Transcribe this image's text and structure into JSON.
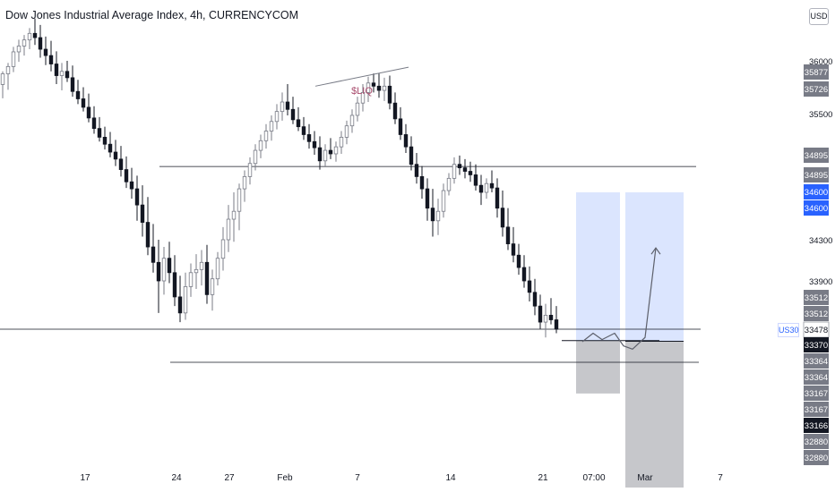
{
  "title": "Dow Jones Industrial Average Index, 4h, CURRENCYCOM",
  "currency_button": "USD",
  "symbol_tag": "US30",
  "annotation": "$LIQ",
  "colors": {
    "candle": "#131722",
    "hline": "#131722",
    "profit_zone": "#dbe5fe",
    "stop_zone": "#c6c7cb",
    "dark_badge": "#131722",
    "gray_badge": "#787b86",
    "blue_badge": "#2962ff",
    "white_badge": "#ffffff",
    "annotation": "#a94d6e"
  },
  "chart_data": {
    "type": "candlestick",
    "price_scale": {
      "ticks": [
        36000,
        35500,
        34300,
        33900
      ],
      "labels": [
        {
          "text": "35877",
          "style": "gray"
        },
        {
          "text": "35726",
          "style": "gray"
        },
        {
          "text": "34895",
          "style": "gray"
        },
        {
          "text": "34895",
          "style": "gray"
        },
        {
          "text": "34600",
          "style": "blue"
        },
        {
          "text": "34600",
          "style": "blue"
        },
        {
          "text": "33512",
          "style": "gray"
        },
        {
          "text": "33512",
          "style": "gray"
        },
        {
          "text": "33478",
          "style": "white"
        },
        {
          "text": "33370",
          "style": "dark"
        },
        {
          "text": "33364",
          "style": "gray"
        },
        {
          "text": "33364",
          "style": "gray"
        },
        {
          "text": "33167",
          "style": "gray"
        },
        {
          "text": "33167",
          "style": "gray"
        },
        {
          "text": "33166",
          "style": "dark"
        },
        {
          "text": "32880",
          "style": "gray"
        },
        {
          "text": "32880",
          "style": "gray"
        }
      ]
    },
    "time_scale": {
      "ticks": [
        "17",
        "24",
        "27",
        "Feb",
        "7",
        "14",
        "21",
        "07:00",
        "Mar",
        "7"
      ]
    },
    "horizontal_levels": [
      34895,
      33478,
      33166
    ],
    "sketched_path": [
      33360,
      33440,
      33380,
      33440,
      33320,
      33290,
      33400,
      34220
    ],
    "positions": [
      {
        "entry": 33370,
        "target": 34600,
        "stop": 33167
      },
      {
        "entry": 33364,
        "target": 34600,
        "stop": 32880
      }
    ],
    "candles": [
      [
        35776,
        35900,
        35645,
        35877
      ],
      [
        35877,
        35980,
        35726,
        35946
      ],
      [
        35946,
        36132,
        35893,
        36085
      ],
      [
        36085,
        36200,
        35990,
        36140
      ],
      [
        36140,
        36245,
        36050,
        36198
      ],
      [
        36198,
        36310,
        36110,
        36260
      ],
      [
        36260,
        36400,
        36150,
        36220
      ],
      [
        36220,
        36340,
        36030,
        36110
      ],
      [
        36110,
        36230,
        35960,
        36050
      ],
      [
        36050,
        36190,
        35900,
        35970
      ],
      [
        35970,
        36090,
        35780,
        35860
      ],
      [
        35860,
        35980,
        35720,
        35900
      ],
      [
        35900,
        36000,
        35800,
        35840
      ],
      [
        35840,
        35955,
        35660,
        35710
      ],
      [
        35710,
        35820,
        35590,
        35640
      ],
      [
        35640,
        35750,
        35520,
        35560
      ],
      [
        35560,
        35690,
        35400,
        35450
      ],
      [
        35450,
        35570,
        35270,
        35330
      ],
      [
        35330,
        35460,
        35180,
        35230
      ],
      [
        35230,
        35350,
        35090,
        35150
      ],
      [
        35150,
        35290,
        35000,
        35060
      ],
      [
        35060,
        35200,
        34900,
        34980
      ],
      [
        34980,
        35130,
        34780,
        34860
      ],
      [
        34860,
        35010,
        34650,
        34720
      ],
      [
        34720,
        34880,
        34560,
        34640
      ],
      [
        34640,
        34790,
        34420,
        34520
      ],
      [
        34520,
        34680,
        34320,
        34410
      ],
      [
        34410,
        34570,
        34150,
        34230
      ],
      [
        34230,
        34400,
        33980,
        34080
      ],
      [
        34080,
        34300,
        33620,
        33900
      ],
      [
        33900,
        34230,
        33780,
        34120
      ],
      [
        34120,
        34280,
        33880,
        33980
      ],
      [
        33980,
        34150,
        33680,
        33760
      ],
      [
        33760,
        33950,
        33540,
        33620
      ],
      [
        33620,
        33980,
        33560,
        33850
      ],
      [
        33850,
        34070,
        33760,
        33980
      ],
      [
        33980,
        34160,
        33830,
        34010
      ],
      [
        34010,
        34200,
        33860,
        34080
      ],
      [
        34080,
        34250,
        33700,
        33780
      ],
      [
        33780,
        34010,
        33640,
        33920
      ],
      [
        33920,
        34180,
        33860,
        34120
      ],
      [
        34120,
        34380,
        34000,
        34300
      ],
      [
        34300,
        34520,
        34180,
        34430
      ],
      [
        34430,
        34600,
        34280,
        34480
      ],
      [
        34480,
        34700,
        34360,
        34640
      ],
      [
        34640,
        34850,
        34540,
        34780
      ],
      [
        34780,
        35000,
        34690,
        34930
      ],
      [
        34930,
        35150,
        34850,
        35080
      ],
      [
        35080,
        35260,
        34990,
        35190
      ],
      [
        35190,
        35380,
        35100,
        35300
      ],
      [
        35300,
        35480,
        35190,
        35410
      ],
      [
        35410,
        35590,
        35320,
        35520
      ],
      [
        35520,
        35700,
        35420,
        35610
      ],
      [
        35610,
        35780,
        35480,
        35540
      ],
      [
        35540,
        35660,
        35380,
        35430
      ],
      [
        35430,
        35560,
        35300,
        35350
      ],
      [
        35350,
        35460,
        35200,
        35260
      ],
      [
        35260,
        35380,
        35100,
        35180
      ],
      [
        35180,
        35300,
        35030,
        35110
      ],
      [
        35110,
        35240,
        34860,
        34960
      ],
      [
        34960,
        35150,
        34900,
        35080
      ],
      [
        35080,
        35220,
        34980,
        35040
      ],
      [
        35040,
        35180,
        34950,
        35120
      ],
      [
        35120,
        35300,
        35040,
        35230
      ],
      [
        35230,
        35420,
        35150,
        35360
      ],
      [
        35360,
        35540,
        35280,
        35480
      ],
      [
        35480,
        35660,
        35410,
        35600
      ],
      [
        35600,
        35780,
        35520,
        35700
      ],
      [
        35700,
        35850,
        35610,
        35790
      ],
      [
        35790,
        35880,
        35700,
        35760
      ],
      [
        35760,
        35880,
        35650,
        35720
      ],
      [
        35720,
        35840,
        35620,
        35760
      ],
      [
        35760,
        35860,
        35540,
        35600
      ],
      [
        35600,
        35700,
        35380,
        35440
      ],
      [
        35440,
        35560,
        35200,
        35260
      ],
      [
        35260,
        35380,
        35050,
        35120
      ],
      [
        35120,
        35240,
        34850,
        34920
      ],
      [
        34920,
        35050,
        34700,
        34780
      ],
      [
        34780,
        34900,
        34560,
        34640
      ],
      [
        34640,
        34760,
        34420,
        34500
      ],
      [
        34500,
        34640,
        34320,
        34420
      ],
      [
        34420,
        34560,
        34330,
        34480
      ],
      [
        34480,
        34700,
        34440,
        34620
      ],
      [
        34620,
        34820,
        34580,
        34760
      ],
      [
        34760,
        35000,
        34700,
        34920
      ],
      [
        34920,
        35020,
        34800,
        34880
      ],
      [
        34880,
        34980,
        34760,
        34840
      ],
      [
        34840,
        34950,
        34720,
        34800
      ],
      [
        34800,
        34920,
        34620,
        34680
      ],
      [
        34680,
        34800,
        34520,
        34600
      ],
      [
        34600,
        34760,
        34560,
        34700
      ],
      [
        34700,
        34850,
        34600,
        34650
      ],
      [
        34650,
        34760,
        34440,
        34500
      ],
      [
        34500,
        34620,
        34320,
        34380
      ],
      [
        34380,
        34500,
        34200,
        34260
      ],
      [
        34260,
        34380,
        34080,
        34150
      ],
      [
        34150,
        34260,
        33960,
        34030
      ],
      [
        34030,
        34150,
        33840,
        33900
      ],
      [
        33900,
        34040,
        33720,
        33800
      ],
      [
        33800,
        33920,
        33600,
        33680
      ],
      [
        33680,
        33780,
        33480,
        33540
      ],
      [
        33540,
        33700,
        33400,
        33600
      ],
      [
        33600,
        33750,
        33520,
        33560
      ],
      [
        33560,
        33680,
        33440,
        33478
      ]
    ]
  }
}
